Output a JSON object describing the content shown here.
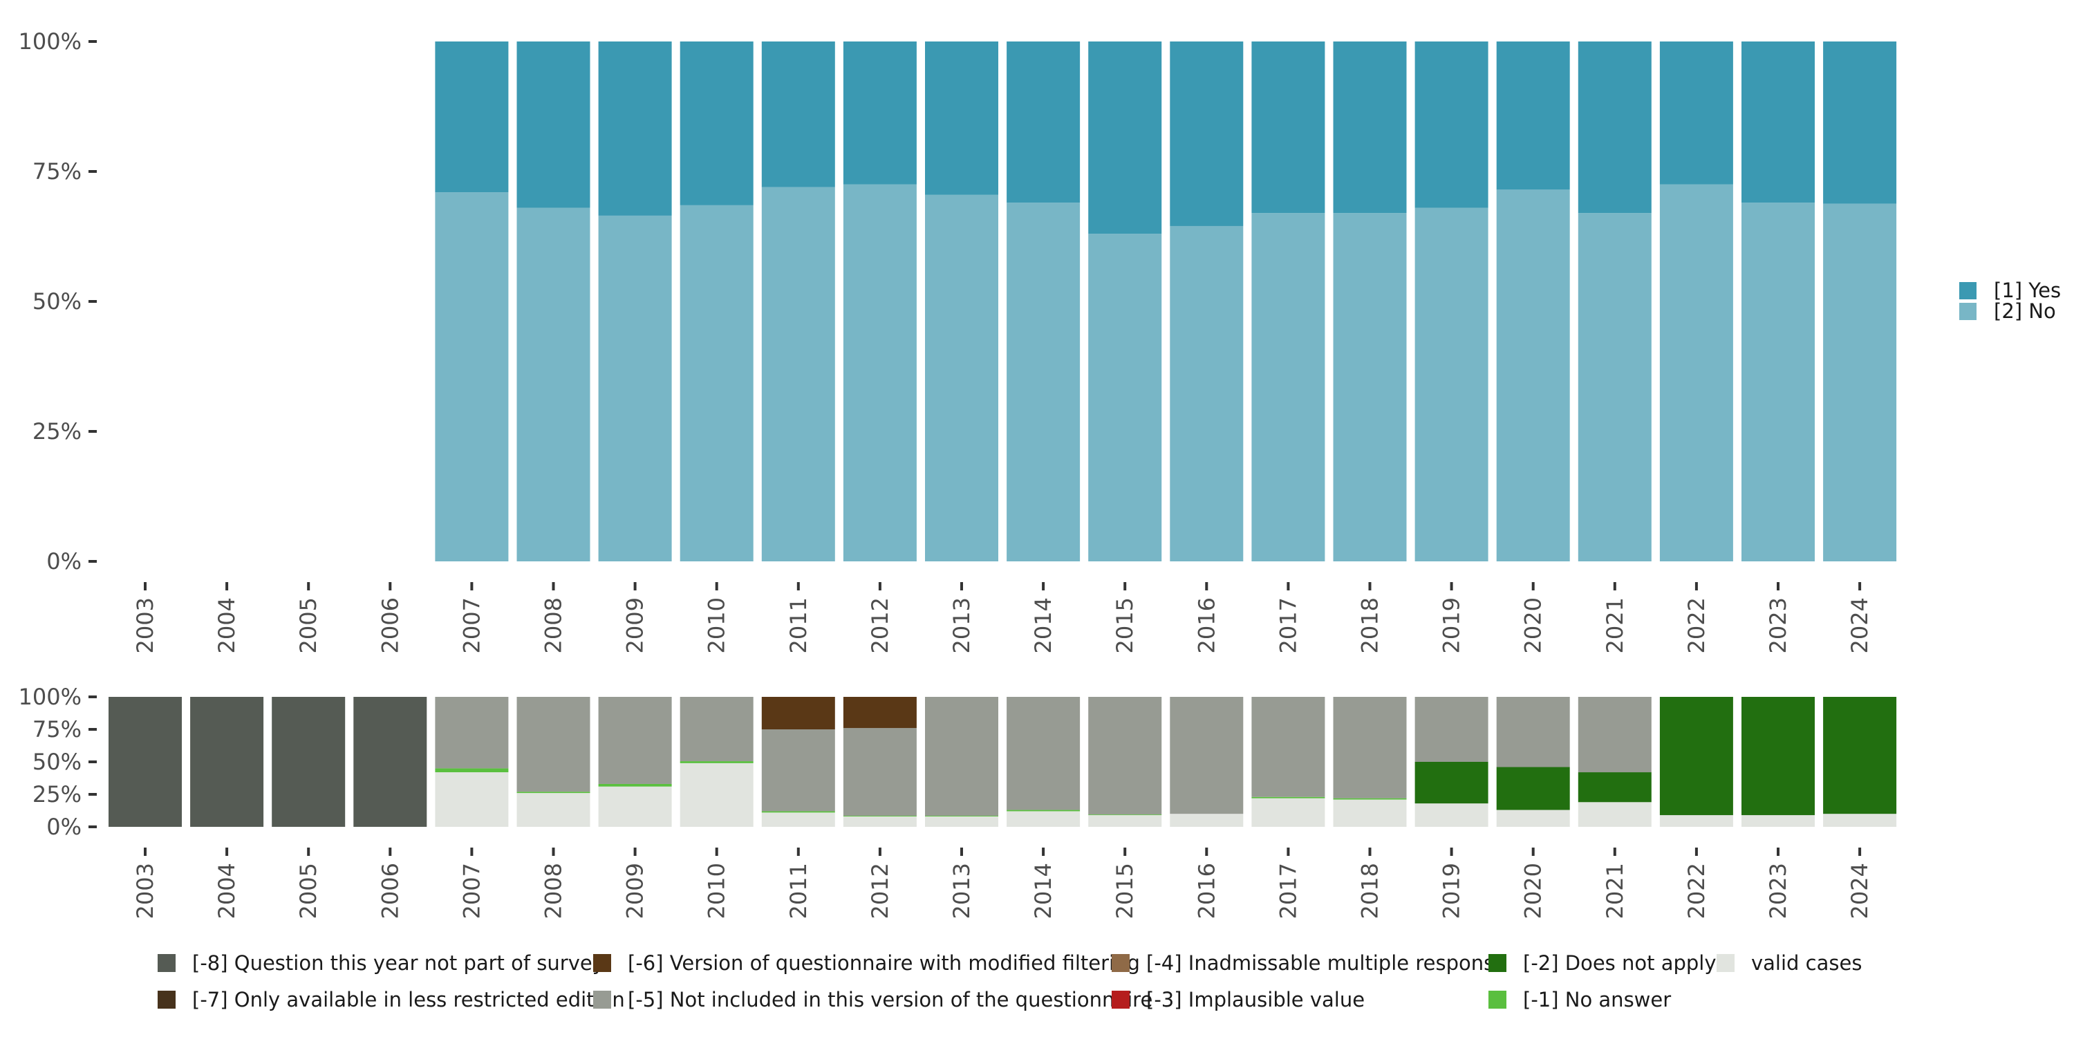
{
  "chart_data": [
    {
      "type": "bar",
      "stacked": true,
      "title": "",
      "xlabel": "",
      "ylabel": "",
      "ylim": [
        0,
        1
      ],
      "y_ticks": [
        "0%",
        "25%",
        "50%",
        "75%",
        "100%"
      ],
      "y_tick_values": [
        0,
        0.25,
        0.5,
        0.75,
        1.0
      ],
      "categories": [
        "2003",
        "2004",
        "2005",
        "2006",
        "2007",
        "2008",
        "2009",
        "2010",
        "2011",
        "2012",
        "2013",
        "2014",
        "2015",
        "2016",
        "2017",
        "2018",
        "2019",
        "2020",
        "2021",
        "2022",
        "2023",
        "2024"
      ],
      "series": [
        {
          "name": "[2] No",
          "color": "#78b6c6",
          "values": [
            null,
            null,
            null,
            null,
            0.71,
            0.68,
            0.665,
            0.685,
            0.72,
            0.725,
            0.705,
            0.69,
            0.63,
            0.645,
            0.67,
            0.67,
            0.68,
            0.715,
            0.67,
            0.725,
            0.69,
            0.688
          ]
        },
        {
          "name": "[1] Yes",
          "color": "#3b99b2",
          "values": [
            null,
            null,
            null,
            null,
            0.29,
            0.32,
            0.335,
            0.315,
            0.28,
            0.275,
            0.295,
            0.31,
            0.37,
            0.355,
            0.33,
            0.33,
            0.32,
            0.285,
            0.33,
            0.275,
            0.31,
            0.312
          ]
        }
      ],
      "legend": {
        "position": "right",
        "order": [
          "[1] Yes",
          "[2] No"
        ]
      }
    },
    {
      "type": "bar",
      "stacked": true,
      "title": "",
      "xlabel": "",
      "ylabel": "",
      "ylim": [
        0,
        1
      ],
      "y_ticks": [
        "0%",
        "25%",
        "50%",
        "75%",
        "100%"
      ],
      "y_tick_values": [
        0,
        0.25,
        0.5,
        0.75,
        1.0
      ],
      "categories": [
        "2003",
        "2004",
        "2005",
        "2006",
        "2007",
        "2008",
        "2009",
        "2010",
        "2011",
        "2012",
        "2013",
        "2014",
        "2015",
        "2016",
        "2017",
        "2018",
        "2019",
        "2020",
        "2021",
        "2022",
        "2023",
        "2024"
      ],
      "series": [
        {
          "name": "valid cases",
          "color": "#e1e4df",
          "values": [
            0,
            0,
            0,
            0,
            0.42,
            0.26,
            0.31,
            0.49,
            0.11,
            0.08,
            0.08,
            0.12,
            0.09,
            0.1,
            0.22,
            0.21,
            0.18,
            0.13,
            0.19,
            0.09,
            0.09,
            0.1
          ]
        },
        {
          "name": "[-1] No answer",
          "color": "#5abf3f",
          "values": [
            0,
            0,
            0,
            0,
            0.03,
            0.01,
            0.02,
            0.015,
            0.01,
            0.005,
            0.005,
            0.01,
            0.005,
            0,
            0.01,
            0.01,
            0,
            0,
            0,
            0,
            0,
            0
          ]
        },
        {
          "name": "[-2] Does not apply",
          "color": "#226f10",
          "values": [
            0,
            0,
            0,
            0,
            0,
            0,
            0,
            0,
            0,
            0,
            0,
            0,
            0,
            0,
            0,
            0,
            0.32,
            0.33,
            0.23,
            0.91,
            0.91,
            0.9
          ]
        },
        {
          "name": "[-3] Implausible value",
          "color": "#b51d1d",
          "values": [
            0,
            0,
            0,
            0,
            0,
            0,
            0,
            0,
            0,
            0,
            0,
            0,
            0,
            0,
            0,
            0,
            0,
            0,
            0,
            0,
            0,
            0
          ]
        },
        {
          "name": "[-4] Inadmissable multiple response",
          "color": "#8f6a47",
          "values": [
            0,
            0,
            0,
            0,
            0,
            0,
            0,
            0,
            0,
            0,
            0,
            0,
            0,
            0,
            0,
            0,
            0,
            0,
            0,
            0,
            0,
            0
          ]
        },
        {
          "name": "[-5] Not included in this version of the questionnaire",
          "color": "#979b93",
          "values": [
            0,
            0,
            0,
            0,
            0.55,
            0.73,
            0.67,
            0.495,
            0.63,
            0.675,
            0.915,
            0.87,
            0.905,
            0.9,
            0.77,
            0.78,
            0.5,
            0.54,
            0.58,
            0,
            0,
            0
          ]
        },
        {
          "name": "[-6] Version of questionnaire with modified filtering",
          "color": "#5a3816",
          "values": [
            0,
            0,
            0,
            0,
            0,
            0,
            0,
            0,
            0.25,
            0.24,
            0,
            0,
            0,
            0,
            0,
            0,
            0,
            0,
            0,
            0,
            0,
            0
          ]
        },
        {
          "name": "[-7] Only available in less restricted edition",
          "color": "#47321c",
          "values": [
            0,
            0,
            0,
            0,
            0,
            0,
            0,
            0,
            0,
            0,
            0,
            0,
            0,
            0,
            0,
            0,
            0,
            0,
            0,
            0,
            0,
            0
          ]
        },
        {
          "name": "[-8] Question this year not part of survey",
          "color": "#555b54",
          "values": [
            1,
            1,
            1,
            1,
            0,
            0,
            0,
            0,
            0,
            0,
            0,
            0,
            0,
            0,
            0,
            0,
            0,
            0,
            0,
            0,
            0,
            0
          ]
        }
      ],
      "legend": {
        "position": "bottom",
        "rows": [
          [
            "[-8] Question this year not part of survey",
            "[-6] Version of questionnaire with modified filtering",
            "[-4] Inadmissable multiple response",
            "[-2] Does not apply",
            "valid cases"
          ],
          [
            "[-7] Only available in less restricted edition",
            "[-5] Not included in this version of the questionnaire",
            "[-3] Implausible value",
            "[-1] No answer"
          ]
        ]
      }
    }
  ]
}
